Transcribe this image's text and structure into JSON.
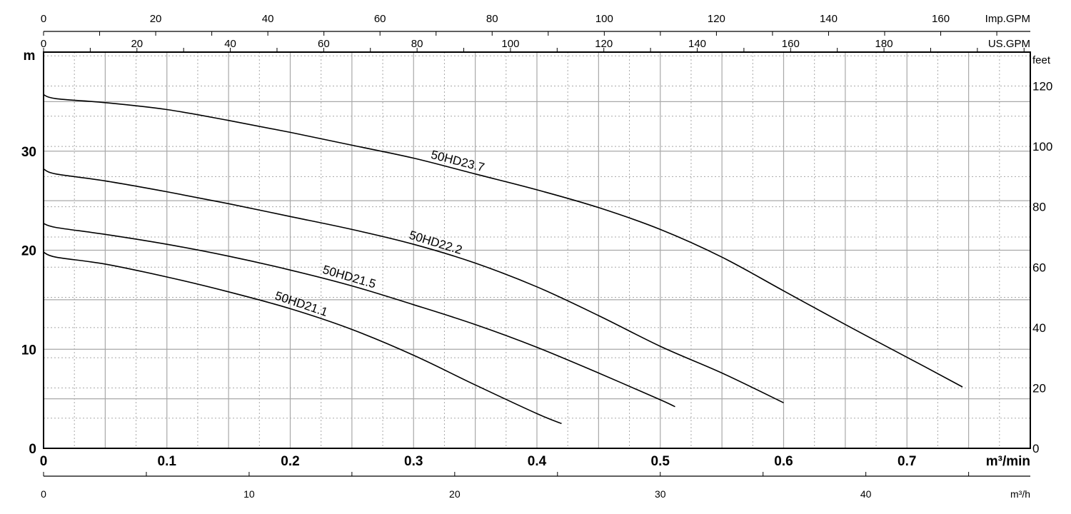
{
  "chart_data": {
    "type": "line",
    "x_unit": "m³/min",
    "y_unit": "m",
    "xlim": [
      0,
      0.8
    ],
    "ylim": [
      0,
      40
    ],
    "x_ticks": [
      0,
      0.1,
      0.2,
      0.3,
      0.4,
      0.5,
      0.6,
      0.7
    ],
    "x_tick_labels": [
      "0",
      "0.1",
      "0.2",
      "0.3",
      "0.4",
      "0.5",
      "0.6",
      "0.7"
    ],
    "y_ticks": [
      0,
      10,
      20,
      30
    ],
    "y_tick_labels": [
      "0",
      "10",
      "20",
      "30"
    ],
    "y_axis_label": "m",
    "x_axis_label": "m³/min",
    "grid": true,
    "secondary_axes": {
      "right": {
        "label": "feet",
        "ticks": [
          0,
          20,
          40,
          60,
          80,
          100,
          120
        ],
        "tick_labels": [
          "0",
          "20",
          "40",
          "60",
          "80",
          "100",
          "120"
        ]
      },
      "top_us": {
        "label": "US.GPM",
        "ticks": [
          0,
          20,
          40,
          60,
          80,
          100,
          120,
          140,
          160,
          180
        ],
        "tick_labels": [
          "0",
          "20",
          "40",
          "60",
          "80",
          "100",
          "120",
          "140",
          "160",
          "180"
        ]
      },
      "top_imp": {
        "label": "Imp.GPM",
        "ticks": [
          0,
          20,
          40,
          60,
          80,
          100,
          120,
          140,
          160
        ],
        "tick_labels": [
          "0",
          "20",
          "40",
          "60",
          "80",
          "100",
          "120",
          "140",
          "160"
        ]
      },
      "bottom_m3h": {
        "label": "m³/h",
        "ticks": [
          0,
          10,
          20,
          30,
          40
        ],
        "tick_labels": [
          "0",
          "10",
          "20",
          "30",
          "40"
        ]
      }
    },
    "series": [
      {
        "name": "50HD23.7",
        "x": [
          0,
          0.01,
          0.05,
          0.1,
          0.15,
          0.2,
          0.25,
          0.3,
          0.35,
          0.4,
          0.45,
          0.5,
          0.55,
          0.6,
          0.65,
          0.7,
          0.745
        ],
        "y": [
          35.7,
          35.3,
          34.9,
          34.2,
          33.1,
          31.9,
          30.6,
          29.3,
          27.7,
          26.1,
          24.3,
          22.1,
          19.3,
          15.9,
          12.5,
          9.2,
          6.2
        ]
      },
      {
        "name": "50HD22.2",
        "x": [
          0,
          0.01,
          0.05,
          0.1,
          0.15,
          0.2,
          0.25,
          0.3,
          0.35,
          0.4,
          0.45,
          0.5,
          0.55,
          0.6
        ],
        "y": [
          28.2,
          27.7,
          27.0,
          25.9,
          24.7,
          23.4,
          22.1,
          20.6,
          18.7,
          16.3,
          13.4,
          10.3,
          7.6,
          4.6
        ]
      },
      {
        "name": "50HD21.5",
        "x": [
          0,
          0.01,
          0.05,
          0.1,
          0.15,
          0.2,
          0.25,
          0.3,
          0.35,
          0.4,
          0.45,
          0.5,
          0.512
        ],
        "y": [
          22.7,
          22.3,
          21.6,
          20.6,
          19.4,
          18.0,
          16.4,
          14.5,
          12.5,
          10.2,
          7.6,
          4.9,
          4.2
        ]
      },
      {
        "name": "50HD21.1",
        "x": [
          0,
          0.01,
          0.05,
          0.1,
          0.15,
          0.2,
          0.25,
          0.3,
          0.35,
          0.4,
          0.42
        ],
        "y": [
          19.8,
          19.3,
          18.6,
          17.3,
          15.8,
          14.1,
          12.0,
          9.4,
          6.4,
          3.5,
          2.5
        ]
      }
    ]
  }
}
